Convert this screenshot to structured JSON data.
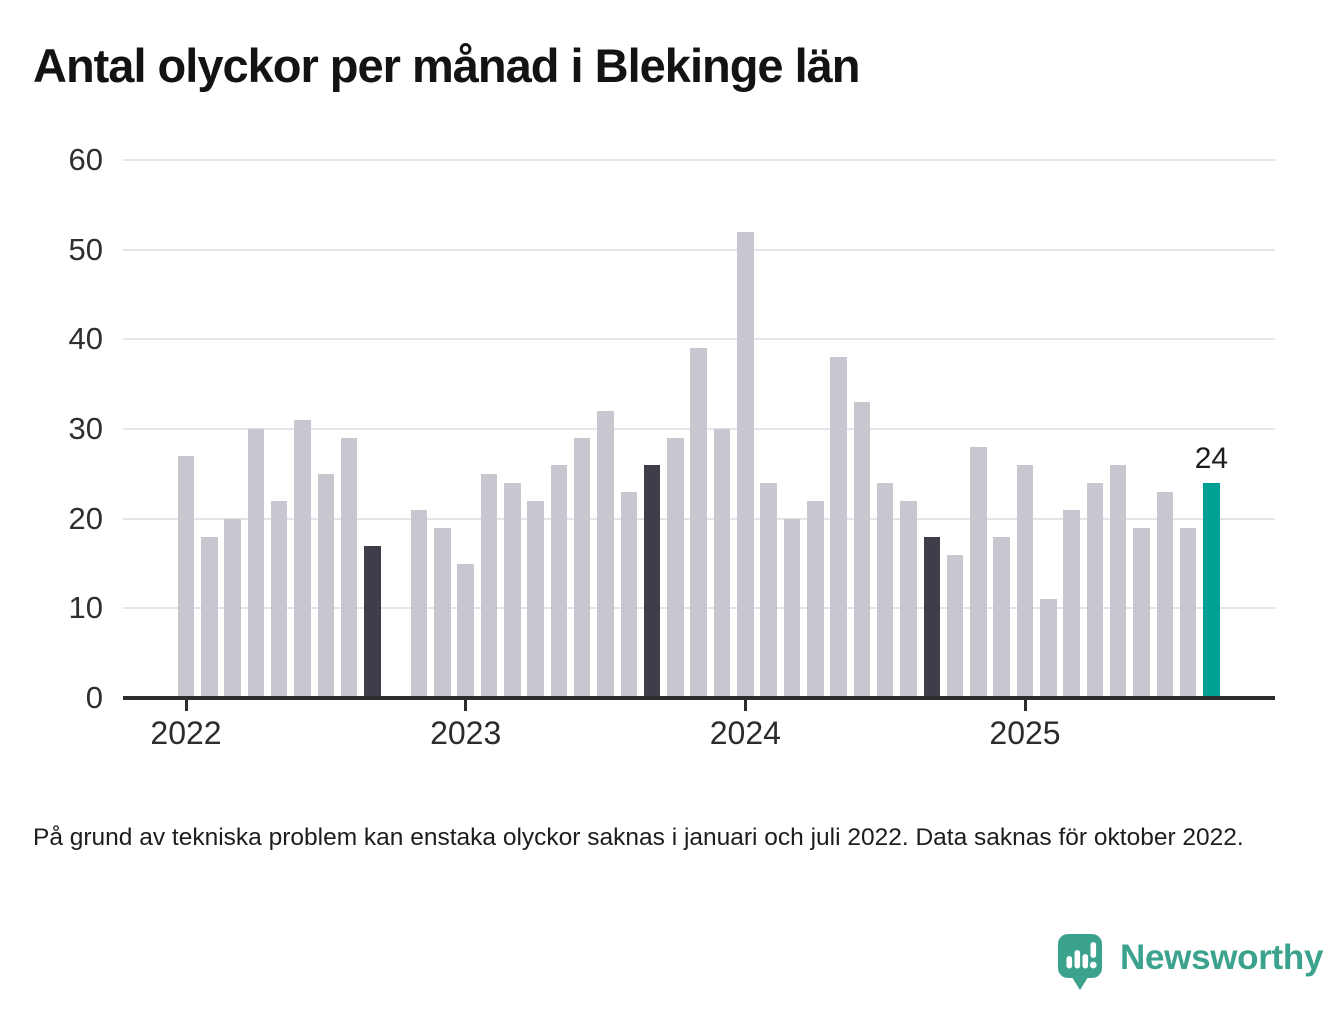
{
  "page": {
    "title": "Antal olyckor per månad i Blekinge län",
    "footnote": "På grund av tekniska problem kan enstaka olyckor saknas i januari och juli 2022. Data saknas för oktober 2022.",
    "brand": {
      "name": "Newsworthy"
    }
  },
  "colors": {
    "bar_default": "#c8c7cf",
    "bar_highlight": "#3f3d49",
    "bar_accent": "#00a094",
    "axis": "#2d2d2d",
    "grid": "#e4e3e7",
    "brand_teal": "#3ba28e"
  },
  "chart_data": {
    "type": "bar",
    "title": "Antal olyckor per månad i Blekinge län",
    "xlabel": "",
    "ylabel": "",
    "ylim": [
      0,
      60
    ],
    "yticks": [
      0,
      10,
      20,
      30,
      40,
      50,
      60
    ],
    "grid": true,
    "legend": false,
    "months": [
      "2022-01",
      "2022-02",
      "2022-03",
      "2022-04",
      "2022-05",
      "2022-06",
      "2022-07",
      "2022-08",
      "2022-09",
      "2022-10",
      "2022-11",
      "2022-12",
      "2023-01",
      "2023-02",
      "2023-03",
      "2023-04",
      "2023-05",
      "2023-06",
      "2023-07",
      "2023-08",
      "2023-09",
      "2023-10",
      "2023-11",
      "2023-12",
      "2024-01",
      "2024-02",
      "2024-03",
      "2024-04",
      "2024-05",
      "2024-06",
      "2024-07",
      "2024-08",
      "2024-09",
      "2024-10",
      "2024-11",
      "2024-12",
      "2025-01",
      "2025-02",
      "2025-03",
      "2025-04",
      "2025-05",
      "2025-06",
      "2025-07",
      "2025-08",
      "2025-09"
    ],
    "values": [
      27,
      18,
      20,
      30,
      22,
      31,
      25,
      29,
      17,
      null,
      21,
      19,
      15,
      25,
      24,
      22,
      26,
      29,
      32,
      23,
      26,
      29,
      39,
      30,
      52,
      24,
      20,
      22,
      38,
      33,
      24,
      22,
      18,
      16,
      28,
      18,
      26,
      11,
      21,
      24,
      26,
      19,
      23,
      19,
      24
    ],
    "missing_months": [
      "2022-10"
    ],
    "highlighted_months": [
      "2022-09",
      "2023-09",
      "2024-09"
    ],
    "accent_month": "2025-09",
    "annotation": {
      "month": "2025-09",
      "label": "24"
    },
    "xticks": [
      {
        "label": "2022",
        "month": "2022-01"
      },
      {
        "label": "2023",
        "month": "2023-01"
      },
      {
        "label": "2024",
        "month": "2024-01"
      },
      {
        "label": "2025",
        "month": "2025-01"
      }
    ]
  }
}
